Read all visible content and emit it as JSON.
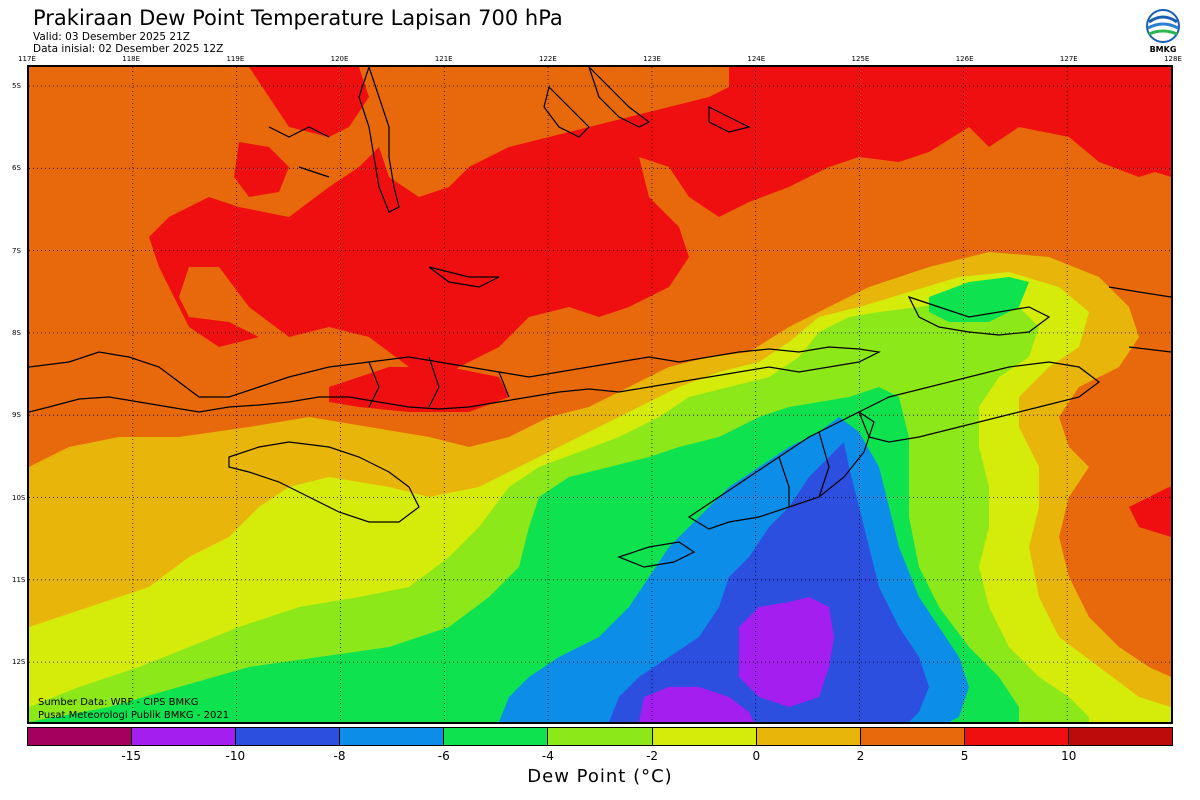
{
  "header": {
    "title": "Prakiraan Dew Point Temperature Lapisan 700 hPa",
    "valid": "Valid: 03 Desember 2025 21Z",
    "initial": "Data inisial: 02 Desember 2025 12Z"
  },
  "logo": {
    "text": "BMKG",
    "icon": "bmkg-logo-icon"
  },
  "map": {
    "lon_labels": [
      "117E",
      "118E",
      "119E",
      "120E",
      "121E",
      "122E",
      "123E",
      "124E",
      "125E",
      "126E",
      "127E",
      "128E"
    ],
    "lat_labels": [
      "5S",
      "6S",
      "7S",
      "8S",
      "9S",
      "10S",
      "11S",
      "12S"
    ]
  },
  "credits": {
    "source": "Sumber Data: WRF - CIPS BMKG",
    "center": "Pusat Meteorologi Publik BMKG - 2021"
  },
  "legend": {
    "colors": [
      "#a5005e",
      "#a41ef0",
      "#2d4fdf",
      "#0b8de8",
      "#0ee34f",
      "#8de81a",
      "#d5ec0b",
      "#e8b60b",
      "#e8690b",
      "#f00f10",
      "#bd0b0b"
    ],
    "labels": [
      "-15",
      "-10",
      "-8",
      "-6",
      "-4",
      "-2",
      "0",
      "2",
      "5",
      "10"
    ],
    "title": "Dew Point (°C)"
  }
}
